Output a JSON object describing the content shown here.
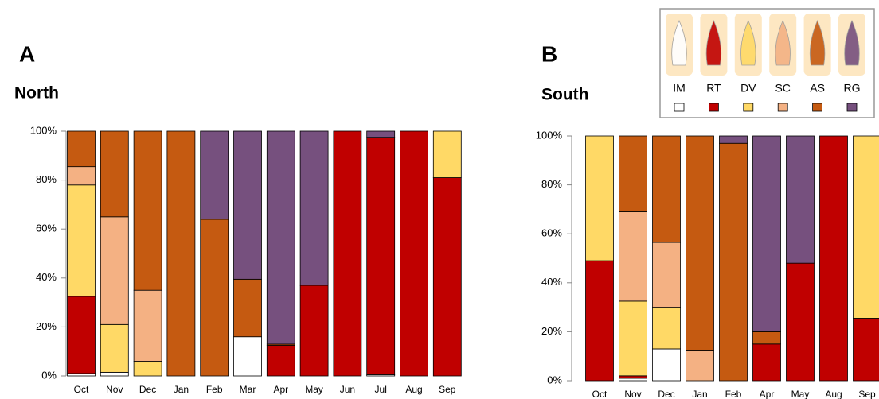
{
  "chart_data": [
    {
      "type": "stacked_bar",
      "panel_label": "A",
      "title": "North",
      "categories": [
        "Oct",
        "Nov",
        "Dec",
        "Jan",
        "Feb",
        "Mar",
        "Apr",
        "May",
        "Jun",
        "Jul",
        "Aug",
        "Sep"
      ],
      "series": [
        {
          "color": "#ffffff",
          "values": [
            1,
            1.5,
            0,
            0,
            0,
            16,
            0,
            0,
            0,
            0.5,
            0,
            0
          ]
        },
        {
          "color": "#c00000",
          "values": [
            31.5,
            0,
            0,
            0,
            0,
            0,
            12.5,
            37,
            100,
            97,
            100,
            81
          ]
        },
        {
          "color": "#ffd966",
          "values": [
            45.5,
            19.5,
            6,
            0,
            0,
            0,
            0,
            0,
            0,
            0,
            0,
            19
          ]
        },
        {
          "color": "#f4b183",
          "values": [
            7.5,
            44,
            29,
            0,
            0,
            0,
            0,
            0,
            0,
            0,
            0,
            0
          ]
        },
        {
          "color": "#c55a11",
          "values": [
            14.5,
            35,
            65,
            100,
            64,
            23.5,
            0.5,
            0,
            0,
            0,
            0,
            0
          ]
        },
        {
          "color": "#76507e",
          "values": [
            0,
            0,
            0,
            0,
            36,
            60.5,
            87,
            63,
            0,
            2.5,
            0,
            0
          ]
        }
      ],
      "ylim": [
        0,
        100
      ],
      "yticks": [
        {
          "value": 0,
          "label": "0%"
        },
        {
          "value": 20,
          "label": "20%"
        },
        {
          "value": 40,
          "label": "40%"
        },
        {
          "value": 60,
          "label": "60%"
        },
        {
          "value": 80,
          "label": "80%"
        },
        {
          "value": 100,
          "label": "100%"
        }
      ],
      "grid": false
    },
    {
      "type": "stacked_bar",
      "panel_label": "B",
      "title": "South",
      "categories": [
        "Oct",
        "Nov",
        "Dec",
        "Jan",
        "Feb",
        "Apr",
        "May",
        "Aug",
        "Sep"
      ],
      "series": [
        {
          "name": "IM",
          "color": "#ffffff",
          "values": [
            0,
            1,
            13,
            0,
            0,
            0,
            0,
            0,
            0
          ]
        },
        {
          "name": "RT",
          "color": "#c00000",
          "values": [
            49,
            1,
            0,
            0,
            0,
            15,
            48,
            100,
            25.5
          ]
        },
        {
          "name": "DV",
          "color": "#ffd966",
          "values": [
            51,
            30.5,
            17,
            0,
            0,
            0,
            0,
            0,
            74.5
          ]
        },
        {
          "name": "SC",
          "color": "#f4b183",
          "values": [
            0,
            36.5,
            26.5,
            12.5,
            0,
            0,
            0,
            0,
            0
          ]
        },
        {
          "name": "AS",
          "color": "#c55a11",
          "values": [
            0,
            31,
            43.5,
            87.5,
            97,
            5,
            0,
            0,
            0
          ]
        },
        {
          "name": "RG",
          "color": "#76507e",
          "values": [
            0,
            0,
            0,
            0,
            3,
            80,
            52,
            0,
            0
          ]
        }
      ],
      "ylim": [
        0,
        100
      ],
      "yticks": [
        {
          "value": 0,
          "label": "0%"
        },
        {
          "value": 20,
          "label": "20%"
        },
        {
          "value": 40,
          "label": "40%"
        },
        {
          "value": 60,
          "label": "60%"
        },
        {
          "value": 80,
          "label": "80%"
        },
        {
          "value": 100,
          "label": "100%"
        }
      ],
      "grid": false
    }
  ]
}
